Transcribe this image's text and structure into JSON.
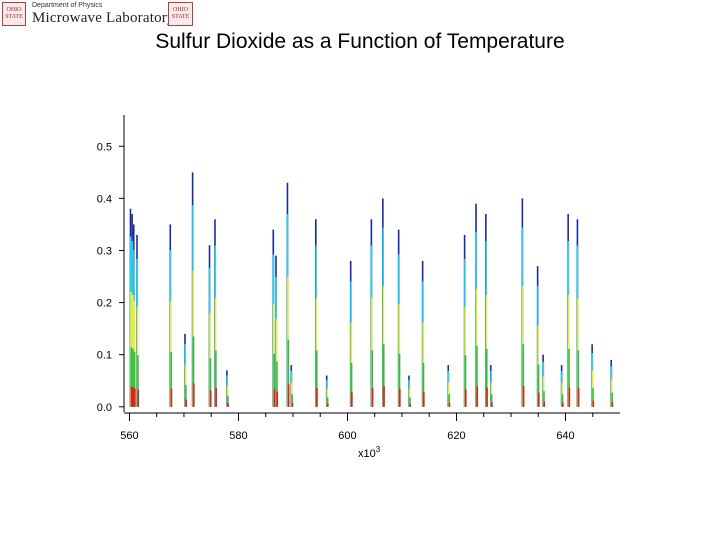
{
  "header": {
    "department": "Department of Physics",
    "lab_name": "Microwave Laboratory",
    "seal_left_text": "OHIO STATE",
    "seal_right_text": "OHIO STATE"
  },
  "chart_data": {
    "type": "line",
    "title": "Sulfur Dioxide as a Function of Temperature",
    "xlabel": "x10^3",
    "x_unit_exponent": 3,
    "xlim": [
      559,
      650
    ],
    "ylim": [
      -0.01,
      0.56
    ],
    "x_ticks": [
      560,
      580,
      600,
      620,
      640
    ],
    "x_tick_labels": [
      "560",
      "580",
      "600",
      "620",
      "640"
    ],
    "y_ticks": [
      0.0,
      0.1,
      0.2,
      0.3,
      0.4,
      0.5
    ],
    "y_tick_labels": [
      "0.0",
      "0.1",
      "0.2",
      "0.3",
      "0.4",
      "0.5"
    ],
    "grid": false,
    "legend": false,
    "series_colors": [
      "#1a2a9c",
      "#2fd0e8",
      "#e8f040",
      "#30c030",
      "#ee1a10"
    ],
    "series_scale": [
      1.0,
      0.86,
      0.58,
      0.3,
      0.1
    ],
    "peaks": [
      {
        "x": 560.3,
        "y": 0.38
      },
      {
        "x": 560.6,
        "y": 0.37
      },
      {
        "x": 560.9,
        "y": 0.35
      },
      {
        "x": 561.5,
        "y": 0.33
      },
      {
        "x": 567.6,
        "y": 0.35
      },
      {
        "x": 570.3,
        "y": 0.14
      },
      {
        "x": 571.7,
        "y": 0.45
      },
      {
        "x": 574.8,
        "y": 0.31
      },
      {
        "x": 575.8,
        "y": 0.36
      },
      {
        "x": 578.0,
        "y": 0.07
      },
      {
        "x": 586.5,
        "y": 0.34
      },
      {
        "x": 587.0,
        "y": 0.29
      },
      {
        "x": 589.1,
        "y": 0.43
      },
      {
        "x": 589.8,
        "y": 0.08
      },
      {
        "x": 594.3,
        "y": 0.36
      },
      {
        "x": 596.3,
        "y": 0.06
      },
      {
        "x": 600.7,
        "y": 0.28
      },
      {
        "x": 604.5,
        "y": 0.36
      },
      {
        "x": 606.6,
        "y": 0.4
      },
      {
        "x": 609.5,
        "y": 0.34
      },
      {
        "x": 611.4,
        "y": 0.06
      },
      {
        "x": 613.9,
        "y": 0.28
      },
      {
        "x": 618.6,
        "y": 0.08
      },
      {
        "x": 621.6,
        "y": 0.33
      },
      {
        "x": 623.7,
        "y": 0.39
      },
      {
        "x": 625.5,
        "y": 0.37
      },
      {
        "x": 626.4,
        "y": 0.08
      },
      {
        "x": 632.2,
        "y": 0.4
      },
      {
        "x": 635.0,
        "y": 0.27
      },
      {
        "x": 636.0,
        "y": 0.1
      },
      {
        "x": 639.4,
        "y": 0.08
      },
      {
        "x": 640.6,
        "y": 0.37
      },
      {
        "x": 642.3,
        "y": 0.36
      },
      {
        "x": 645.0,
        "y": 0.12
      },
      {
        "x": 648.5,
        "y": 0.09
      }
    ]
  }
}
